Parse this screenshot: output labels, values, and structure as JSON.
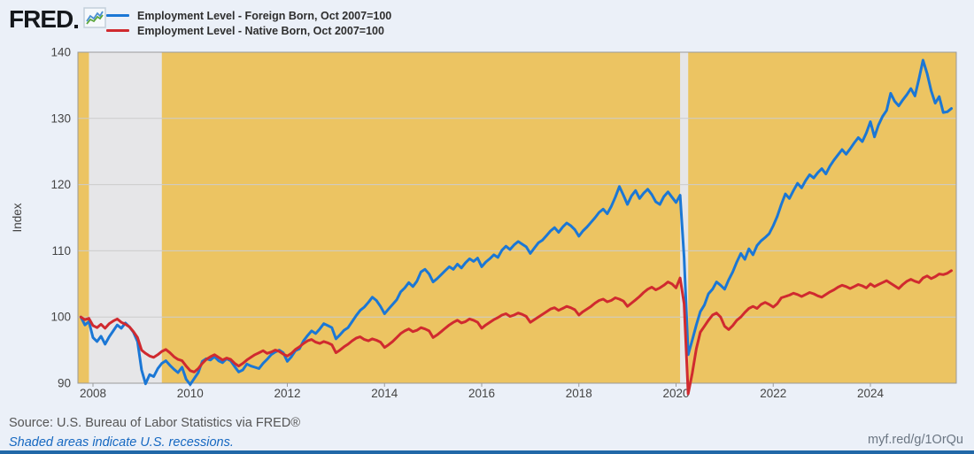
{
  "brand": {
    "logo_text": "FRED",
    "chart_icon": "fred-sparkline-icon"
  },
  "legend": [
    {
      "label": "Employment Level - Foreign Born, Oct 2007=100",
      "color": "#1b77d5"
    },
    {
      "label": "Employment Level - Native Born, Oct 2007=100",
      "color": "#d02a2f"
    }
  ],
  "footer": {
    "source_text": "Source: U.S. Bureau of Labor Statistics via FRED®",
    "recession_note": "Shaded areas indicate U.S. recessions.",
    "short_url": "myf.red/g/1OrQu"
  },
  "colors": {
    "page_bg": "#ebf0f8",
    "plot_bg": "#ecc462",
    "recession_band": "#e6e6e8",
    "gridline": "#cccccc",
    "frame": "#9a9a9a",
    "axis_text": "#444444",
    "blue_line": "#1b77d5",
    "red_line": "#d02a2f",
    "bottom_bar": "#2168a8",
    "link_blue": "#1668c1"
  },
  "chart_data": {
    "type": "line",
    "title": "",
    "xlabel": "",
    "ylabel": "Index",
    "ylim": [
      90,
      140
    ],
    "yticks": [
      90,
      100,
      110,
      120,
      130,
      140
    ],
    "xticks": [
      2008,
      2010,
      2012,
      2014,
      2016,
      2018,
      2020,
      2022,
      2024
    ],
    "grid": true,
    "legend_position": "top-left",
    "x_start_year": 2007,
    "x_start_month": 10,
    "frequency": "monthly",
    "recessions": [
      [
        2007.917,
        2009.417
      ],
      [
        2020.083,
        2020.25
      ]
    ],
    "series": [
      {
        "name": "Employment Level - Foreign Born, Oct 2007=100",
        "color": "#1b77d5",
        "values": [
          100.0,
          98.8,
          99.3,
          96.9,
          96.3,
          97.1,
          95.9,
          97.0,
          97.9,
          98.8,
          98.3,
          99.1,
          98.5,
          97.7,
          96.3,
          92.0,
          89.9,
          91.3,
          91.0,
          92.2,
          93.0,
          93.4,
          92.7,
          92.1,
          91.6,
          92.4,
          90.6,
          89.8,
          90.7,
          91.6,
          93.3,
          93.7,
          93.5,
          94.0,
          93.4,
          93.1,
          93.7,
          93.4,
          92.5,
          91.7,
          92.0,
          92.9,
          92.6,
          92.4,
          92.2,
          93.0,
          93.6,
          94.3,
          94.7,
          95.0,
          94.6,
          93.3,
          94.0,
          94.9,
          95.2,
          96.4,
          97.2,
          97.9,
          97.5,
          98.2,
          99.0,
          98.7,
          98.4,
          96.7,
          97.3,
          98.0,
          98.4,
          99.3,
          100.2,
          101.0,
          101.5,
          102.2,
          103.0,
          102.5,
          101.6,
          100.5,
          101.2,
          101.9,
          102.6,
          103.8,
          104.4,
          105.2,
          104.6,
          105.4,
          106.8,
          107.2,
          106.5,
          105.3,
          105.8,
          106.4,
          107.0,
          107.6,
          107.2,
          108.0,
          107.4,
          108.2,
          108.8,
          108.4,
          108.9,
          107.6,
          108.3,
          108.8,
          109.4,
          109.0,
          110.1,
          110.7,
          110.2,
          110.9,
          111.4,
          111.0,
          110.6,
          109.6,
          110.4,
          111.2,
          111.6,
          112.3,
          113.0,
          113.5,
          112.8,
          113.6,
          114.2,
          113.8,
          113.2,
          112.2,
          113.0,
          113.6,
          114.3,
          115.0,
          115.8,
          116.3,
          115.6,
          116.7,
          118.1,
          119.7,
          118.4,
          117.0,
          118.3,
          119.1,
          117.9,
          118.7,
          119.3,
          118.5,
          117.4,
          117.0,
          118.2,
          118.9,
          118.1,
          117.3,
          118.4,
          109.0,
          94.3,
          96.5,
          98.8,
          100.8,
          101.8,
          103.5,
          104.2,
          105.3,
          104.8,
          104.2,
          105.6,
          106.8,
          108.3,
          109.6,
          108.7,
          110.3,
          109.4,
          110.8,
          111.5,
          112.0,
          112.6,
          113.8,
          115.2,
          117.0,
          118.6,
          117.9,
          119.1,
          120.2,
          119.5,
          120.6,
          121.5,
          121.0,
          121.8,
          122.4,
          121.6,
          122.8,
          123.7,
          124.5,
          125.3,
          124.6,
          125.4,
          126.3,
          127.1,
          126.5,
          127.8,
          129.5,
          127.2,
          129.0,
          130.3,
          131.2,
          133.8,
          132.6,
          131.9,
          132.8,
          133.6,
          134.5,
          133.4,
          136.0,
          138.8,
          136.8,
          134.2,
          132.3,
          133.3,
          130.9,
          131.0,
          131.5
        ]
      },
      {
        "name": "Employment Level - Native Born, Oct 2007=100",
        "color": "#d02a2f",
        "values": [
          100.0,
          99.6,
          99.8,
          98.7,
          98.4,
          98.9,
          98.3,
          99.0,
          99.4,
          99.7,
          99.2,
          98.9,
          98.5,
          97.8,
          96.9,
          95.0,
          94.5,
          94.1,
          93.9,
          94.3,
          94.8,
          95.1,
          94.6,
          94.0,
          93.6,
          93.4,
          92.6,
          91.9,
          91.7,
          92.2,
          93.0,
          93.6,
          94.0,
          94.3,
          93.9,
          93.5,
          93.8,
          93.6,
          93.0,
          92.6,
          93.0,
          93.5,
          93.9,
          94.3,
          94.6,
          94.9,
          94.5,
          94.7,
          95.0,
          94.8,
          94.4,
          94.1,
          94.5,
          95.1,
          95.5,
          96.0,
          96.4,
          96.6,
          96.2,
          96.0,
          96.3,
          96.1,
          95.8,
          94.6,
          95.0,
          95.5,
          95.9,
          96.4,
          96.8,
          97.0,
          96.6,
          96.4,
          96.7,
          96.5,
          96.2,
          95.4,
          95.8,
          96.3,
          96.9,
          97.5,
          97.9,
          98.2,
          97.8,
          98.0,
          98.4,
          98.2,
          97.9,
          96.9,
          97.3,
          97.8,
          98.3,
          98.8,
          99.2,
          99.5,
          99.1,
          99.3,
          99.7,
          99.5,
          99.2,
          98.3,
          98.8,
          99.2,
          99.6,
          99.9,
          100.3,
          100.5,
          100.1,
          100.3,
          100.6,
          100.4,
          100.1,
          99.2,
          99.6,
          100.0,
          100.4,
          100.8,
          101.2,
          101.4,
          101.0,
          101.3,
          101.6,
          101.4,
          101.1,
          100.3,
          100.8,
          101.2,
          101.6,
          102.1,
          102.5,
          102.7,
          102.3,
          102.5,
          102.9,
          102.7,
          102.4,
          101.6,
          102.1,
          102.6,
          103.1,
          103.7,
          104.2,
          104.5,
          104.1,
          104.4,
          104.8,
          105.3,
          105.0,
          104.4,
          105.9,
          102.0,
          88.4,
          91.5,
          95.2,
          97.7,
          98.6,
          99.5,
          100.3,
          100.6,
          100.0,
          98.6,
          98.1,
          98.7,
          99.5,
          100.0,
          100.7,
          101.3,
          101.6,
          101.3,
          101.9,
          102.2,
          101.9,
          101.5,
          102.0,
          102.9,
          103.1,
          103.3,
          103.6,
          103.4,
          103.1,
          103.4,
          103.7,
          103.5,
          103.2,
          103.0,
          103.4,
          103.8,
          104.1,
          104.5,
          104.8,
          104.6,
          104.3,
          104.6,
          104.9,
          104.7,
          104.4,
          105.0,
          104.6,
          104.9,
          105.2,
          105.5,
          105.1,
          104.7,
          104.3,
          104.9,
          105.4,
          105.7,
          105.4,
          105.2,
          105.9,
          106.2,
          105.8,
          106.1,
          106.5,
          106.4,
          106.6,
          107.0
        ]
      }
    ]
  }
}
